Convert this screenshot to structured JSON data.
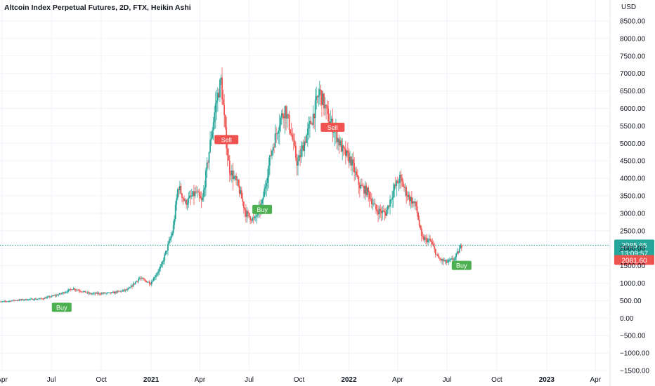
{
  "chart_data": {
    "type": "candlestick",
    "title": "Altcoin Index Perpetual Futures, 2D, FTX, Heikin Ashi",
    "currency": "USD",
    "ylim": [
      -1500,
      9000
    ],
    "y_ticks": [
      -1500,
      -1000,
      -500,
      0,
      500,
      1000,
      1500,
      2000,
      2500,
      3000,
      3500,
      4000,
      4500,
      5000,
      5500,
      6000,
      6500,
      7000,
      7500,
      8000,
      8500
    ],
    "y_tick_labels": [
      "−1500.00",
      "−1000.00",
      "−500.00",
      "0.00",
      "500.00",
      "1000.00",
      "1500.00",
      "2000.00",
      "2500.00",
      "3000.00",
      "3500.00",
      "4000.00",
      "4500.00",
      "5000.00",
      "5500.00",
      "6000.00",
      "6500.00",
      "7000.00",
      "7500.00",
      "8000.00",
      "8500.00"
    ],
    "x_ticks": [
      {
        "label": "Apr",
        "date": "2020-04-01",
        "bold": false
      },
      {
        "label": "Jul",
        "date": "2020-07-01",
        "bold": false
      },
      {
        "label": "Oct",
        "date": "2020-10-01",
        "bold": false
      },
      {
        "label": "2021",
        "date": "2021-01-01",
        "bold": true
      },
      {
        "label": "Apr",
        "date": "2021-04-01",
        "bold": false
      },
      {
        "label": "Jul",
        "date": "2021-07-01",
        "bold": false
      },
      {
        "label": "Oct",
        "date": "2021-10-01",
        "bold": false
      },
      {
        "label": "2022",
        "date": "2022-01-01",
        "bold": true
      },
      {
        "label": "Apr",
        "date": "2022-04-01",
        "bold": false
      },
      {
        "label": "Jul",
        "date": "2022-07-01",
        "bold": false
      },
      {
        "label": "Oct",
        "date": "2022-10-01",
        "bold": false
      },
      {
        "label": "2023",
        "date": "2023-01-01",
        "bold": true
      },
      {
        "label": "Apr",
        "date": "2023-04-01",
        "bold": false
      }
    ],
    "price_anchors": [
      [
        "2020-03-20",
        450
      ],
      [
        "2020-05-01",
        520
      ],
      [
        "2020-06-15",
        560
      ],
      [
        "2020-07-15",
        680
      ],
      [
        "2020-08-10",
        850
      ],
      [
        "2020-09-10",
        700
      ],
      [
        "2020-10-20",
        720
      ],
      [
        "2020-11-20",
        820
      ],
      [
        "2020-12-10",
        1150
      ],
      [
        "2020-12-31",
        1000
      ],
      [
        "2021-01-20",
        1500
      ],
      [
        "2021-02-10",
        2500
      ],
      [
        "2021-02-20",
        3800
      ],
      [
        "2021-03-05",
        3300
      ],
      [
        "2021-03-25",
        3600
      ],
      [
        "2021-04-05",
        3300
      ],
      [
        "2021-04-20",
        5000
      ],
      [
        "2021-04-30",
        6100
      ],
      [
        "2021-05-10",
        6800
      ],
      [
        "2021-05-18",
        5300
      ],
      [
        "2021-05-25",
        4300
      ],
      [
        "2021-06-10",
        3800
      ],
      [
        "2021-06-25",
        3000
      ],
      [
        "2021-07-10",
        2800
      ],
      [
        "2021-07-25",
        3300
      ],
      [
        "2021-08-10",
        4700
      ],
      [
        "2021-08-25",
        5600
      ],
      [
        "2021-09-05",
        6000
      ],
      [
        "2021-09-15",
        5400
      ],
      [
        "2021-09-28",
        4400
      ],
      [
        "2021-10-10",
        5000
      ],
      [
        "2021-10-25",
        5700
      ],
      [
        "2021-11-08",
        6500
      ],
      [
        "2021-11-25",
        5700
      ],
      [
        "2021-12-05",
        5400
      ],
      [
        "2021-12-20",
        4800
      ],
      [
        "2022-01-05",
        4500
      ],
      [
        "2022-01-20",
        3800
      ],
      [
        "2022-02-05",
        3600
      ],
      [
        "2022-02-20",
        3100
      ],
      [
        "2022-03-10",
        3000
      ],
      [
        "2022-03-25",
        3700
      ],
      [
        "2022-04-05",
        4000
      ],
      [
        "2022-04-20",
        3500
      ],
      [
        "2022-05-05",
        3200
      ],
      [
        "2022-05-15",
        2300
      ],
      [
        "2022-06-01",
        2200
      ],
      [
        "2022-06-15",
        1700
      ],
      [
        "2022-06-30",
        1600
      ],
      [
        "2022-07-15",
        1700
      ],
      [
        "2022-07-28",
        2085
      ]
    ],
    "signals": [
      {
        "label": "Buy",
        "date": "2020-07-20",
        "price": 300,
        "type": "buy"
      },
      {
        "label": "Sell",
        "date": "2021-05-20",
        "price": 5100,
        "type": "sell"
      },
      {
        "label": "Buy",
        "date": "2021-07-25",
        "price": 3100,
        "type": "buy"
      },
      {
        "label": "Sell",
        "date": "2021-12-02",
        "price": 5450,
        "type": "sell"
      },
      {
        "label": "Buy",
        "date": "2022-07-28",
        "price": 1500,
        "type": "buy"
      }
    ],
    "current_price": {
      "value": 2085.65,
      "label": "2085.65",
      "countdown": "13:09:57",
      "color": "#26a69a"
    },
    "second_price": {
      "value": 2081.6,
      "label": "2081.60",
      "color": "#ef5350"
    },
    "colors": {
      "up": "#26a69a",
      "down": "#ef5350",
      "buy": "#4caf50",
      "sell": "#ef5350",
      "grid": "#f0f3fa"
    },
    "grid": true
  }
}
